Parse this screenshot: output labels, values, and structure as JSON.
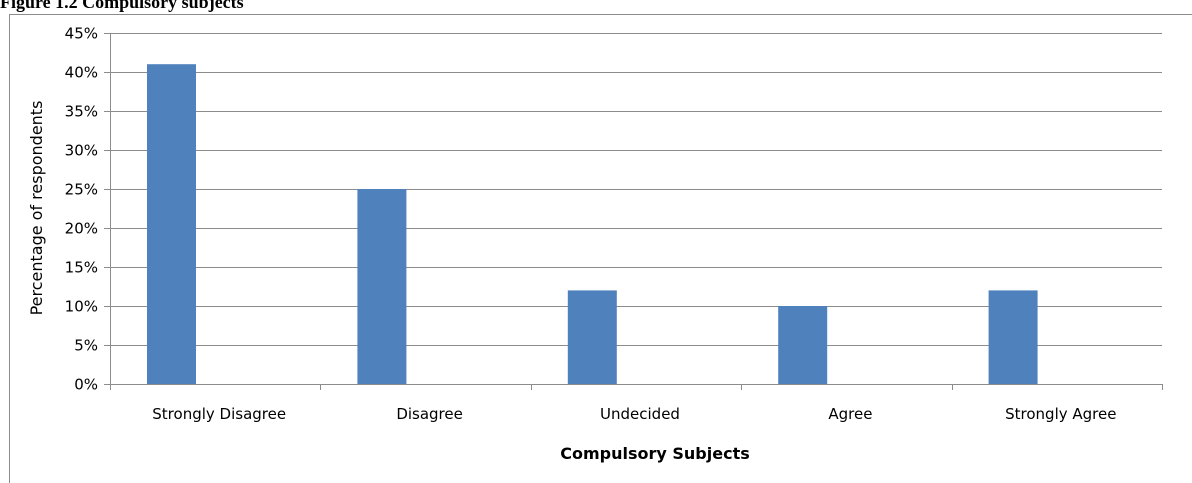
{
  "figure_caption": "Figure 1.2 Compulsory subjects",
  "chart_data": {
    "type": "bar",
    "title": "",
    "categories": [
      "Strongly Disagree",
      "Disagree",
      "Undecided",
      "Agree",
      "Strongly Agree"
    ],
    "values": [
      41,
      25,
      12,
      10,
      12
    ],
    "value_unit": "%",
    "xlabel": "Compulsory Subjects",
    "ylabel": "Percentage of respondents",
    "ylim": [
      0,
      45
    ],
    "ytick_step": 5,
    "yticks": [
      "0%",
      "5%",
      "10%",
      "15%",
      "20%",
      "25%",
      "30%",
      "35%",
      "40%",
      "45%"
    ],
    "grid": true,
    "legend": "none",
    "bar_color": "#4f81bd",
    "grid_color": "#8c8c8c"
  }
}
